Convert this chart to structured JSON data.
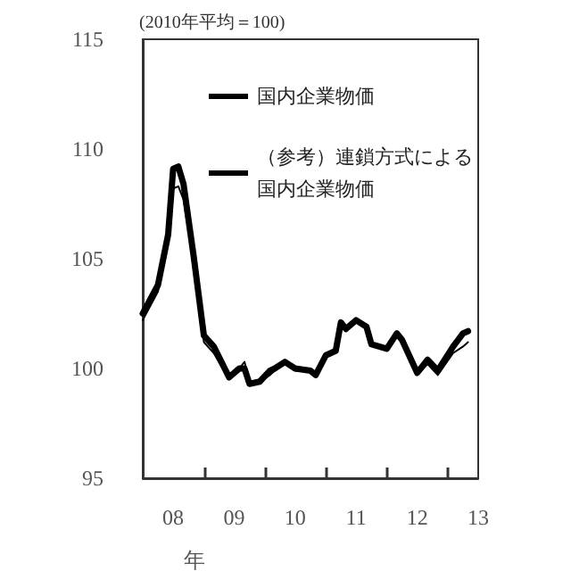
{
  "chart_data": {
    "type": "line",
    "ylabel": "(2010年平均＝100)",
    "xlabel": "年",
    "xlim": [
      "2008-01",
      "2013-07"
    ],
    "xticks": [
      {
        "value": "2008-07",
        "label": "08"
      },
      {
        "value": "2009-01",
        "label": null
      },
      {
        "value": "2009-07",
        "label": "09"
      },
      {
        "value": "2010-01",
        "label": null
      },
      {
        "value": "2010-07",
        "label": "10"
      },
      {
        "value": "2011-01",
        "label": null
      },
      {
        "value": "2011-07",
        "label": "11"
      },
      {
        "value": "2012-01",
        "label": null
      },
      {
        "value": "2012-07",
        "label": "12"
      },
      {
        "value": "2013-01",
        "label": null
      },
      {
        "value": "2013-07",
        "label": "13"
      }
    ],
    "ylim": [
      95,
      115
    ],
    "yticks": [
      95,
      100,
      105,
      110,
      115
    ],
    "grid": false,
    "legend": "top",
    "marker": "none",
    "line_style": "solid",
    "series": [
      {
        "name": "国内企業物価",
        "color": "#000000",
        "x": [
          "2008-01",
          "2008-04",
          "2008-06",
          "2008-07",
          "2008-08",
          "2008-09",
          "2008-11",
          "2009-01",
          "2009-03",
          "2009-06",
          "2009-08",
          "2009-09",
          "2009-10",
          "2009-12",
          "2010-02",
          "2010-03",
          "2010-05",
          "2010-07",
          "2010-10",
          "2010-11",
          "2011-01",
          "2011-03",
          "2011-04",
          "2011-05",
          "2011-07",
          "2011-09",
          "2011-10",
          "2012-01",
          "2012-03",
          "2012-04",
          "2012-07",
          "2012-09",
          "2012-11",
          "2013-02",
          "2013-04",
          "2013-05"
        ],
        "values": [
          102.5,
          103.8,
          106.1,
          109.1,
          109.2,
          108.4,
          105.1,
          101.5,
          101.0,
          99.6,
          100.0,
          100.0,
          99.3,
          99.4,
          99.9,
          100.0,
          100.3,
          100.0,
          99.9,
          99.7,
          100.6,
          100.8,
          102.1,
          101.8,
          102.2,
          101.9,
          101.1,
          100.9,
          101.6,
          101.3,
          99.8,
          100.4,
          99.9,
          101.0,
          101.6,
          101.7
        ]
      },
      {
        "name": "（参考）連鎖方式による国内企業物価",
        "color": "#000000",
        "x": [
          "2008-01",
          "2008-04",
          "2008-06",
          "2008-07",
          "2008-08",
          "2008-09",
          "2008-11",
          "2009-01",
          "2009-03",
          "2009-06",
          "2009-08",
          "2009-09",
          "2009-10",
          "2009-12",
          "2010-02",
          "2010-03",
          "2010-05",
          "2010-07",
          "2010-10",
          "2010-11",
          "2011-01",
          "2011-03",
          "2011-04",
          "2011-05",
          "2011-07",
          "2011-09",
          "2011-10",
          "2012-01",
          "2012-03",
          "2012-04",
          "2012-07",
          "2012-09",
          "2012-11",
          "2013-02",
          "2013-04",
          "2013-05"
        ],
        "values": [
          102.2,
          103.5,
          105.7,
          108.2,
          108.3,
          107.7,
          104.8,
          101.2,
          100.7,
          99.5,
          100.0,
          100.3,
          99.4,
          99.4,
          99.7,
          99.9,
          100.2,
          99.9,
          99.9,
          99.7,
          100.5,
          100.8,
          102.0,
          101.8,
          102.1,
          101.9,
          101.1,
          100.9,
          101.5,
          101.2,
          99.7,
          100.2,
          99.7,
          100.7,
          101.0,
          101.2
        ]
      }
    ]
  }
}
